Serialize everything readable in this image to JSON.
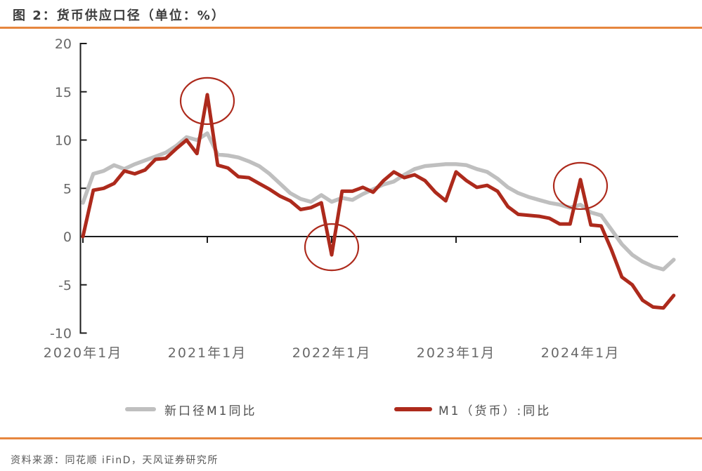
{
  "header": {
    "title": "图 2：货币供应口径（单位：%）"
  },
  "footer": {
    "source": "资料来源：同花顺 iFinD，天风证券研究所"
  },
  "colors": {
    "accent_orange": "#e6863e",
    "axis_black": "#1c1c1c",
    "tick_label_gray": "#686868",
    "series_gray": "#bfbfbf",
    "series_red": "#ad2a1c"
  },
  "legend": {
    "items": [
      {
        "label": "新口径M1同比",
        "color_key": "series_gray"
      },
      {
        "label": "M1（货币）:同比",
        "color_key": "series_red"
      }
    ]
  },
  "chart_data": {
    "type": "line",
    "title": "货币供应口径",
    "unit": "%",
    "xlabel": "",
    "ylabel": "",
    "grid": false,
    "legend_position": "bottom",
    "x_months_range": [
      "2020年1月",
      "2024年10月"
    ],
    "x_tick_labels": [
      "2020年1月",
      "2021年1月",
      "2022年1月",
      "2023年1月",
      "2024年1月"
    ],
    "x_tick_month_indices": [
      0,
      12,
      24,
      36,
      48
    ],
    "y_ticks": [
      20,
      15,
      10,
      5,
      0,
      -5,
      -10
    ],
    "ylim": [
      -10,
      20
    ],
    "series": [
      {
        "name": "新口径M1同比",
        "color_key": "series_gray",
        "values": [
          3.5,
          6.5,
          6.8,
          7.4,
          7.0,
          7.5,
          7.9,
          8.3,
          8.7,
          9.4,
          10.3,
          10.0,
          10.7,
          8.5,
          8.4,
          8.2,
          7.8,
          7.3,
          6.5,
          5.5,
          4.5,
          3.9,
          3.6,
          4.3,
          3.6,
          4.0,
          3.8,
          4.4,
          4.9,
          5.4,
          5.7,
          6.4,
          7.0,
          7.3,
          7.4,
          7.5,
          7.5,
          7.4,
          7.0,
          6.7,
          6.0,
          5.1,
          4.5,
          4.1,
          3.8,
          3.5,
          3.3,
          3.0,
          3.3,
          2.5,
          2.2,
          0.7,
          -0.8,
          -1.9,
          -2.6,
          -3.1,
          -3.4,
          -2.4
        ]
      },
      {
        "name": "M1（货币）:同比",
        "color_key": "series_red",
        "values": [
          0.0,
          4.8,
          5.0,
          5.5,
          6.8,
          6.5,
          6.9,
          8.0,
          8.1,
          9.1,
          10.0,
          8.6,
          14.7,
          7.4,
          7.1,
          6.2,
          6.1,
          5.5,
          4.9,
          4.2,
          3.7,
          2.8,
          3.0,
          3.5,
          -1.9,
          4.7,
          4.7,
          5.1,
          4.6,
          5.8,
          6.7,
          6.1,
          6.4,
          5.8,
          4.6,
          3.7,
          6.7,
          5.8,
          5.1,
          5.3,
          4.7,
          3.1,
          2.3,
          2.2,
          2.1,
          1.9,
          1.3,
          1.3,
          5.9,
          1.2,
          1.1,
          -1.4,
          -4.2,
          -5.0,
          -6.6,
          -7.3,
          -7.4,
          -6.1
        ]
      }
    ],
    "highlight_circles": [
      {
        "month_index": 12,
        "value": 14.7
      },
      {
        "month_index": 24,
        "value": -1.9
      },
      {
        "month_index": 48,
        "value": 5.9
      }
    ]
  }
}
